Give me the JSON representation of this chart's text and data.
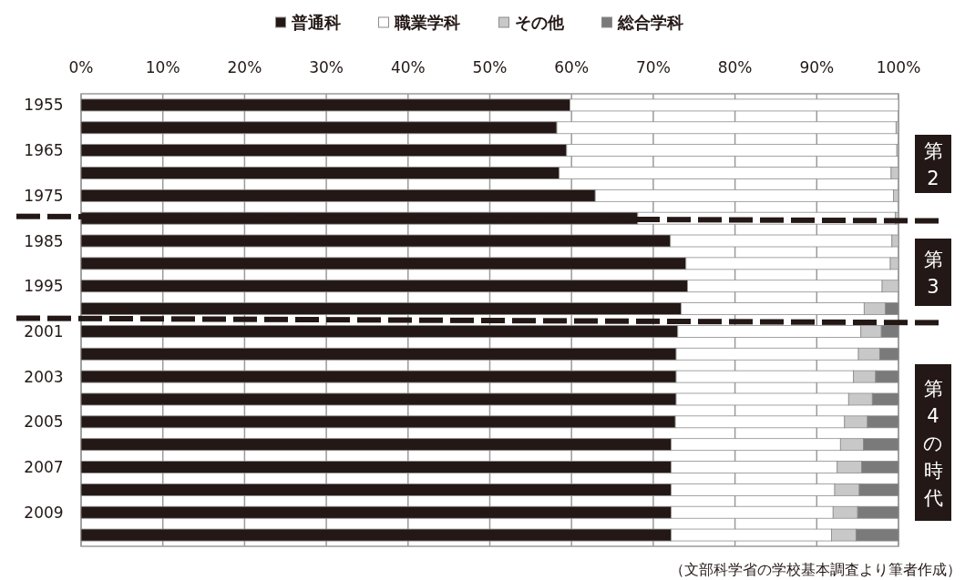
{
  "chart_data": {
    "type": "bar",
    "orientation": "horizontal",
    "stacked": true,
    "categories": [
      "1955",
      null,
      "1965",
      null,
      "1975",
      null,
      "1985",
      null,
      "1995",
      null,
      "2001",
      null,
      "2003",
      null,
      "2005",
      null,
      "2007",
      null,
      "2009",
      null
    ],
    "series": [
      {
        "name": "普通科",
        "color": "#231815",
        "values": [
          59.8,
          58.2,
          59.4,
          58.5,
          62.9,
          68.1,
          72.1,
          74.0,
          74.2,
          73.4,
          73.0,
          72.8,
          72.8,
          72.8,
          72.7,
          72.2,
          72.2,
          72.2,
          72.2,
          72.2
        ]
      },
      {
        "name": "職業学科",
        "color": "#ffffff",
        "values": [
          40.2,
          41.5,
          40.4,
          40.6,
          36.5,
          31.5,
          27.1,
          25.0,
          23.8,
          22.4,
          22.4,
          22.3,
          21.7,
          21.1,
          20.7,
          20.7,
          20.3,
          20.0,
          19.8,
          19.6
        ]
      },
      {
        "name": "その他",
        "color": "#c8c8c8",
        "values": [
          0,
          0.3,
          0.2,
          0.9,
          0.6,
          0.4,
          0.8,
          1.0,
          2.0,
          2.6,
          2.5,
          2.6,
          2.7,
          2.9,
          2.8,
          2.8,
          3.0,
          3.0,
          3.0,
          3.0
        ]
      },
      {
        "name": "総合学科",
        "color": "#7a7a7a",
        "values": [
          0,
          0,
          0,
          0,
          0,
          0,
          0,
          0,
          0,
          1.6,
          2.1,
          2.3,
          2.8,
          3.2,
          3.8,
          4.3,
          4.5,
          4.8,
          5.0,
          5.2
        ]
      }
    ],
    "xlim": [
      0,
      100
    ],
    "xticks": [
      {
        "value": 0,
        "label": "0%"
      },
      {
        "value": 10,
        "label": "10%"
      },
      {
        "value": 20,
        "label": "20%"
      },
      {
        "value": 30,
        "label": "30%"
      },
      {
        "value": 40,
        "label": "40%"
      },
      {
        "value": 50,
        "label": "50%"
      },
      {
        "value": 60,
        "label": "60%"
      },
      {
        "value": 70,
        "label": "70%"
      },
      {
        "value": 80,
        "label": "80%"
      },
      {
        "value": 90,
        "label": "90%"
      },
      {
        "value": 100,
        "label": "100%"
      }
    ],
    "grid": "x",
    "legend": "top",
    "annotations": [
      "第2",
      "第3",
      "第4の時代",
      "（文部科学省の学校基本調査より筆者作成）"
    ]
  }
}
